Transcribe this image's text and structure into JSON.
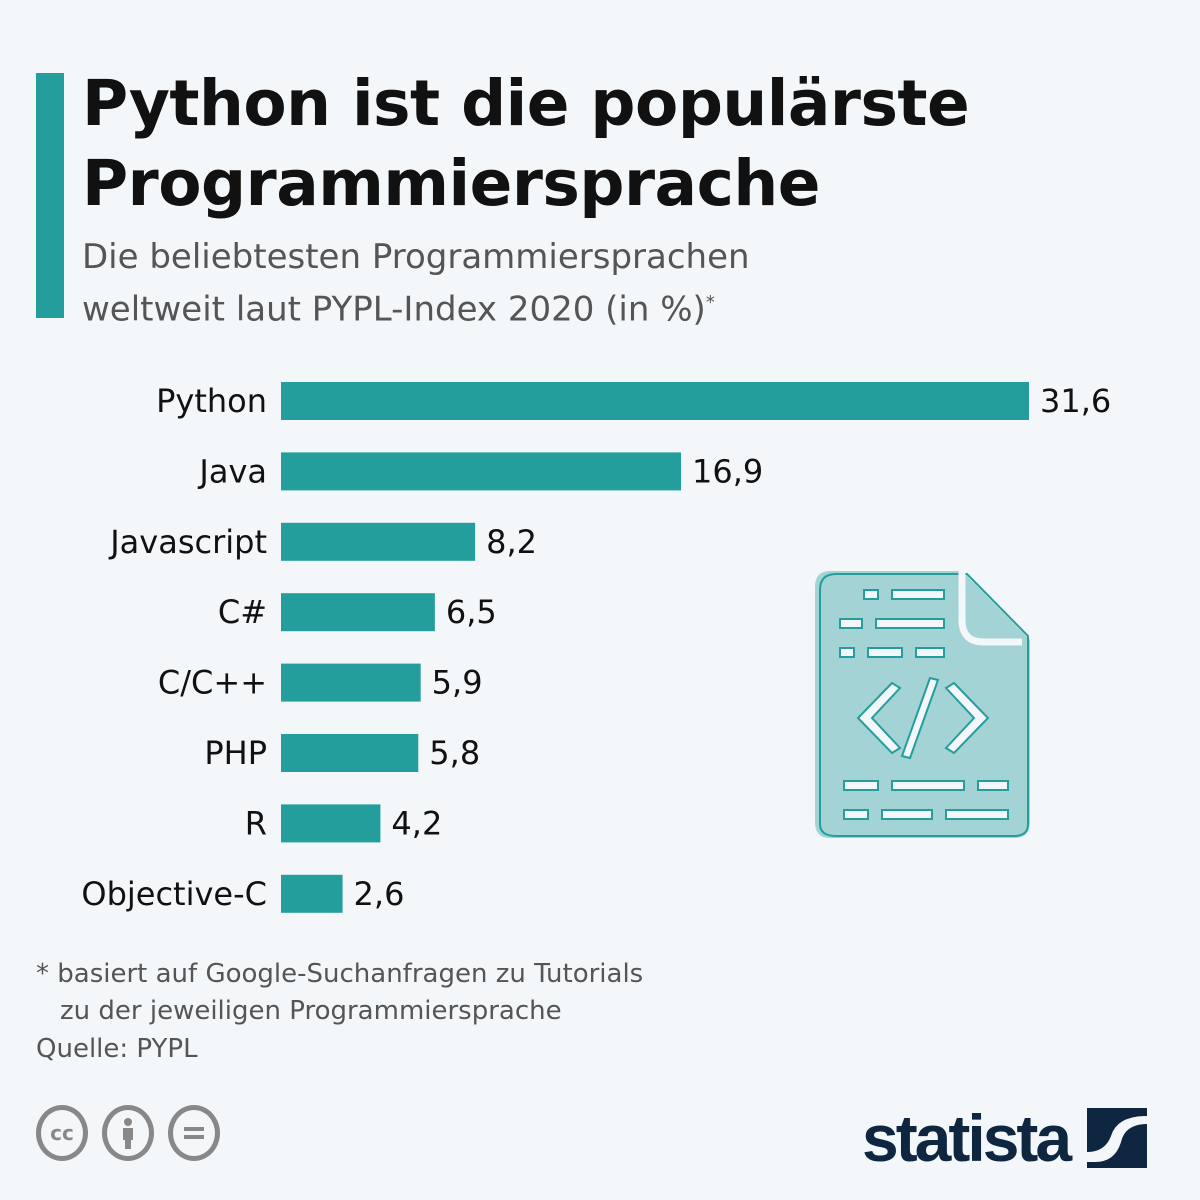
{
  "header": {
    "title_line1": "Python ist die populärste",
    "title_line2": "Programmiersprache",
    "subtitle_line1": "Die beliebtesten Programmiersprachen",
    "subtitle_line2": "weltweit laut PYPL-Index 2020 (in %)",
    "subtitle_mark": "*"
  },
  "chart_data": {
    "type": "bar",
    "orientation": "horizontal",
    "categories": [
      "Python",
      "Java",
      "Javascript",
      "C#",
      "C/C++",
      "PHP",
      "R",
      "Objective-C"
    ],
    "values": [
      31.6,
      16.9,
      8.2,
      6.5,
      5.9,
      5.8,
      4.2,
      2.6
    ],
    "data_labels": [
      "31,6",
      "16,9",
      "8,2",
      "6,5",
      "5,9",
      "5,8",
      "4,2",
      "2,6"
    ],
    "unit": "%",
    "grid": false,
    "color": "#239e9c"
  },
  "footer": {
    "note_line1": "* basiert auf Google-Suchanfragen zu Tutorials",
    "note_line2": "zu der jeweiligen Programmiersprache",
    "source": "Quelle: PYPL",
    "license_icons": [
      "cc-icon",
      "attribution-icon",
      "no-derivatives-icon"
    ],
    "cc_label": "cc",
    "logo": "statista"
  },
  "colors": {
    "accent": "#239e9c",
    "background": "#f3f7fa",
    "logo": "#0f2640",
    "icon_fill": "#a3d3d4"
  }
}
